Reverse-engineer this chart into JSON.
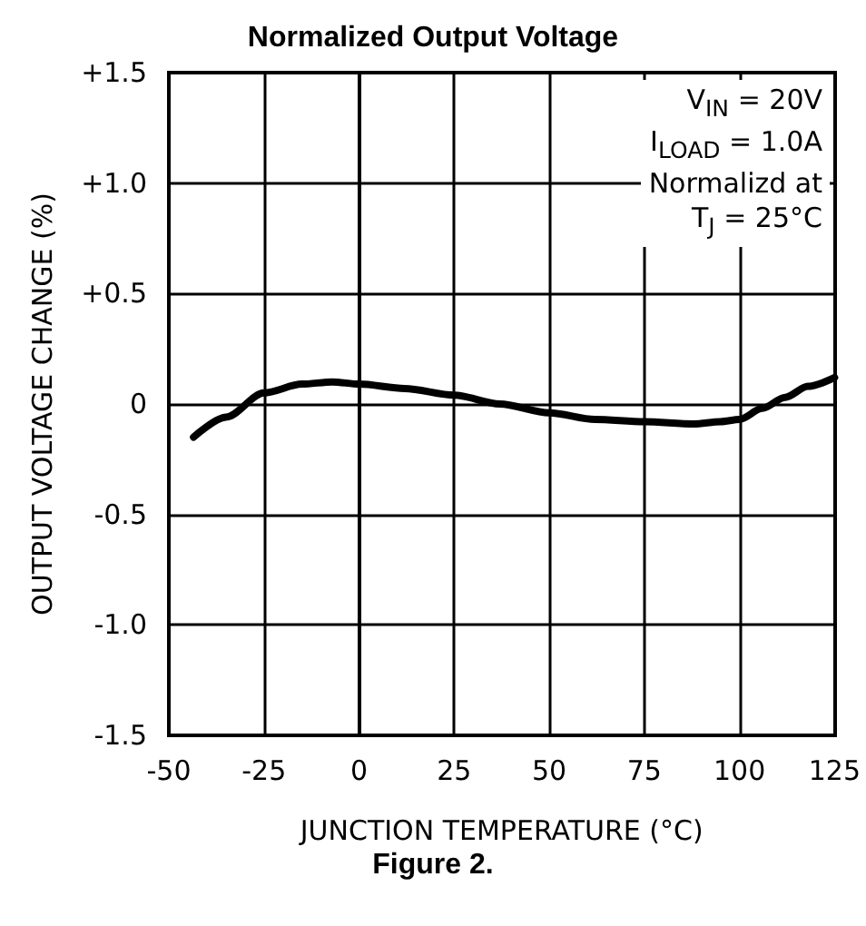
{
  "chart_data": {
    "type": "line",
    "title": "Normalized Output Voltage",
    "xlabel": "JUNCTION TEMPERATURE (°C)",
    "ylabel": "OUTPUT VOLTAGE CHANGE (%)",
    "annotations": [
      "V$_{IN}$ = 20V\nI$_{LOAD}$ = 1.0A\nNormalizd at\nT$_{J}$ = 25°C",
      "Figure 2."
    ],
    "series": [
      {
        "color": "#000000",
        "x": [
          -43.5,
          -35,
          -25,
          -15,
          -7,
          0,
          12,
          25,
          37,
          50,
          62,
          75,
          88,
          95,
          100,
          106,
          112,
          118,
          125
        ],
        "values": [
          -0.15,
          -0.06,
          0.05,
          0.09,
          0.1,
          0.09,
          0.07,
          0.04,
          0,
          -0.04,
          -0.07,
          -0.08,
          -0.09,
          -0.08,
          -0.07,
          -0.02,
          0.03,
          0.08,
          0.12
        ]
      }
    ],
    "xlim": [
      -50,
      125
    ],
    "xticks": [
      -50,
      -25,
      0,
      25,
      50,
      75,
      100,
      125
    ],
    "ylim": [
      -1.5,
      1.5
    ],
    "yticks": [
      {
        "value": -1.5,
        "label": "-1.5"
      },
      {
        "value": -1,
        "label": "-1.0"
      },
      -0.5,
      0,
      {
        "value": 0.5,
        "label": "+0.5"
      },
      {
        "value": 1,
        "label": "+1.0"
      },
      {
        "value": 1.5,
        "label": "+1.5"
      }
    ],
    "grid": true,
    "marker": "none",
    "line_style": "solid"
  }
}
